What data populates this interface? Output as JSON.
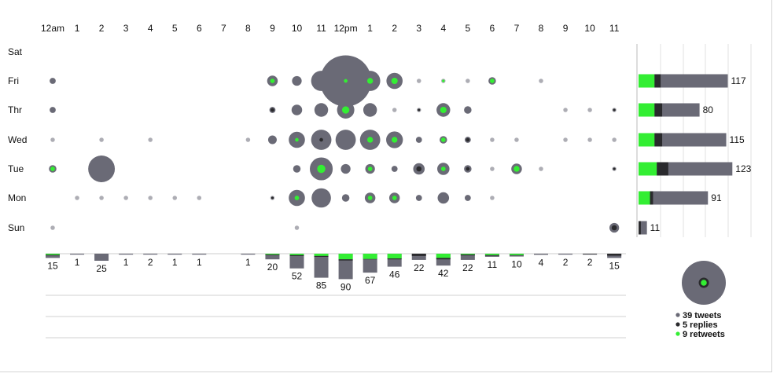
{
  "colors": {
    "tweets": "#6a6a76",
    "replies": "#2a2a2d",
    "retweets": "#33ee33"
  },
  "chart_data": {
    "type": "scatter",
    "hours": [
      "12am",
      "1",
      "2",
      "3",
      "4",
      "5",
      "6",
      "7",
      "8",
      "9",
      "10",
      "11",
      "12pm",
      "1",
      "2",
      "3",
      "4",
      "5",
      "6",
      "7",
      "8",
      "9",
      "10",
      "11"
    ],
    "days": [
      "Sat",
      "Fri",
      "Thr",
      "Wed",
      "Tue",
      "Mon",
      "Sun"
    ],
    "bubbles": [
      {
        "day": "Fri",
        "hour": 0,
        "size": 2,
        "inner": 0,
        "innerType": "none"
      },
      {
        "day": "Fri",
        "hour": 9,
        "size": 6,
        "inner": 3,
        "innerType": "retweet"
      },
      {
        "day": "Fri",
        "hour": 10,
        "size": 5,
        "inner": 0,
        "innerType": "none"
      },
      {
        "day": "Fri",
        "hour": 11,
        "size": 22,
        "inner": 0,
        "innerType": "none"
      },
      {
        "day": "Fri",
        "hour": 12,
        "size": 140,
        "inner": 2,
        "innerType": "retweet"
      },
      {
        "day": "Fri",
        "hour": 13,
        "size": 22,
        "inner": 5,
        "innerType": "retweet"
      },
      {
        "day": "Fri",
        "hour": 14,
        "size": 14,
        "inner": 6,
        "innerType": "retweet"
      },
      {
        "day": "Fri",
        "hour": 15,
        "size": 1,
        "inner": 0,
        "innerType": "none"
      },
      {
        "day": "Fri",
        "hour": 16,
        "size": 1,
        "inner": 1,
        "innerType": "retweet"
      },
      {
        "day": "Fri",
        "hour": 17,
        "size": 1,
        "inner": 0,
        "innerType": "none"
      },
      {
        "day": "Fri",
        "hour": 18,
        "size": 3,
        "inner": 3,
        "innerType": "retweet"
      },
      {
        "day": "Fri",
        "hour": 20,
        "size": 1,
        "inner": 0,
        "innerType": "reply"
      },
      {
        "day": "Thr",
        "hour": 0,
        "size": 2,
        "inner": 0,
        "innerType": "none"
      },
      {
        "day": "Thr",
        "hour": 9,
        "size": 2,
        "inner": 2,
        "innerType": "reply"
      },
      {
        "day": "Thr",
        "hour": 10,
        "size": 6,
        "inner": 0,
        "innerType": "none"
      },
      {
        "day": "Thr",
        "hour": 11,
        "size": 10,
        "inner": 0,
        "innerType": "none"
      },
      {
        "day": "Thr",
        "hour": 12,
        "size": 16,
        "inner": 8,
        "innerType": "retweet"
      },
      {
        "day": "Thr",
        "hour": 13,
        "size": 10,
        "inner": 0,
        "innerType": "none"
      },
      {
        "day": "Thr",
        "hour": 14,
        "size": 1,
        "inner": 0,
        "innerType": "none"
      },
      {
        "day": "Thr",
        "hour": 15,
        "size": 1,
        "inner": 1,
        "innerType": "reply"
      },
      {
        "day": "Thr",
        "hour": 16,
        "size": 10,
        "inner": 6,
        "innerType": "retweet"
      },
      {
        "day": "Thr",
        "hour": 17,
        "size": 3,
        "inner": 0,
        "innerType": "none"
      },
      {
        "day": "Thr",
        "hour": 21,
        "size": 1,
        "inner": 0,
        "innerType": "none"
      },
      {
        "day": "Thr",
        "hour": 22,
        "size": 1,
        "inner": 0,
        "innerType": "none"
      },
      {
        "day": "Thr",
        "hour": 23,
        "size": 1,
        "inner": 1,
        "innerType": "reply"
      },
      {
        "day": "Wed",
        "hour": 0,
        "size": 1,
        "inner": 0,
        "innerType": "none"
      },
      {
        "day": "Wed",
        "hour": 2,
        "size": 1,
        "inner": 0,
        "innerType": "none"
      },
      {
        "day": "Wed",
        "hour": 4,
        "size": 1,
        "inner": 0,
        "innerType": "none"
      },
      {
        "day": "Wed",
        "hour": 8,
        "size": 1,
        "inner": 0,
        "innerType": "none"
      },
      {
        "day": "Wed",
        "hour": 9,
        "size": 4,
        "inner": 0,
        "innerType": "none"
      },
      {
        "day": "Wed",
        "hour": 10,
        "size": 14,
        "inner": 2,
        "innerType": "retweet"
      },
      {
        "day": "Wed",
        "hour": 11,
        "size": 22,
        "inner": 2,
        "innerType": "reply"
      },
      {
        "day": "Wed",
        "hour": 12,
        "size": 22,
        "inner": 0,
        "innerType": "none"
      },
      {
        "day": "Wed",
        "hour": 13,
        "size": 22,
        "inner": 5,
        "innerType": "retweet"
      },
      {
        "day": "Wed",
        "hour": 14,
        "size": 15,
        "inner": 5,
        "innerType": "retweet"
      },
      {
        "day": "Wed",
        "hour": 15,
        "size": 2,
        "inner": 0,
        "innerType": "none"
      },
      {
        "day": "Wed",
        "hour": 16,
        "size": 3,
        "inner": 3,
        "innerType": "retweet"
      },
      {
        "day": "Wed",
        "hour": 17,
        "size": 2,
        "inner": 2,
        "innerType": "reply"
      },
      {
        "day": "Wed",
        "hour": 18,
        "size": 1,
        "inner": 0,
        "innerType": "none"
      },
      {
        "day": "Wed",
        "hour": 19,
        "size": 1,
        "inner": 0,
        "innerType": "none"
      },
      {
        "day": "Wed",
        "hour": 21,
        "size": 1,
        "inner": 0,
        "innerType": "none"
      },
      {
        "day": "Wed",
        "hour": 22,
        "size": 1,
        "inner": 0,
        "innerType": "none"
      },
      {
        "day": "Wed",
        "hour": 23,
        "size": 1,
        "inner": 0,
        "innerType": "none"
      },
      {
        "day": "Tue",
        "hour": 0,
        "size": 3,
        "inner": 3,
        "innerType": "retweet"
      },
      {
        "day": "Tue",
        "hour": 2,
        "size": 38,
        "inner": 0,
        "innerType": "none"
      },
      {
        "day": "Tue",
        "hour": 10,
        "size": 3,
        "inner": 0,
        "innerType": "none"
      },
      {
        "day": "Tue",
        "hour": 11,
        "size": 28,
        "inner": 10,
        "innerType": "retweet"
      },
      {
        "day": "Tue",
        "hour": 12,
        "size": 5,
        "inner": 0,
        "innerType": "none"
      },
      {
        "day": "Tue",
        "hour": 13,
        "size": 5,
        "inner": 3,
        "innerType": "retweet"
      },
      {
        "day": "Tue",
        "hour": 14,
        "size": 2,
        "inner": 0,
        "innerType": "none"
      },
      {
        "day": "Tue",
        "hour": 15,
        "size": 7,
        "inner": 4,
        "innerType": "reply"
      },
      {
        "day": "Tue",
        "hour": 16,
        "size": 8,
        "inner": 3,
        "innerType": "retweet"
      },
      {
        "day": "Tue",
        "hour": 17,
        "size": 3,
        "inner": 2,
        "innerType": "reply"
      },
      {
        "day": "Tue",
        "hour": 18,
        "size": 1,
        "inner": 0,
        "innerType": "none"
      },
      {
        "day": "Tue",
        "hour": 19,
        "size": 6,
        "inner": 5,
        "innerType": "retweet"
      },
      {
        "day": "Tue",
        "hour": 20,
        "size": 1,
        "inner": 0,
        "innerType": "none"
      },
      {
        "day": "Tue",
        "hour": 23,
        "size": 1,
        "inner": 1,
        "innerType": "reply"
      },
      {
        "day": "Mon",
        "hour": 1,
        "size": 1,
        "inner": 0,
        "innerType": "none"
      },
      {
        "day": "Mon",
        "hour": 2,
        "size": 1,
        "inner": 0,
        "innerType": "none"
      },
      {
        "day": "Mon",
        "hour": 3,
        "size": 1,
        "inner": 0,
        "innerType": "none"
      },
      {
        "day": "Mon",
        "hour": 4,
        "size": 1,
        "inner": 0,
        "innerType": "none"
      },
      {
        "day": "Mon",
        "hour": 5,
        "size": 1,
        "inner": 0,
        "innerType": "none"
      },
      {
        "day": "Mon",
        "hour": 6,
        "size": 1,
        "inner": 0,
        "innerType": "none"
      },
      {
        "day": "Mon",
        "hour": 9,
        "size": 1,
        "inner": 1,
        "innerType": "reply"
      },
      {
        "day": "Mon",
        "hour": 10,
        "size": 14,
        "inner": 3,
        "innerType": "retweet"
      },
      {
        "day": "Mon",
        "hour": 11,
        "size": 20,
        "inner": 0,
        "innerType": "none"
      },
      {
        "day": "Mon",
        "hour": 12,
        "size": 3,
        "inner": 0,
        "innerType": "none"
      },
      {
        "day": "Mon",
        "hour": 13,
        "size": 6,
        "inner": 3,
        "innerType": "retweet"
      },
      {
        "day": "Mon",
        "hour": 14,
        "size": 6,
        "inner": 3,
        "innerType": "retweet"
      },
      {
        "day": "Mon",
        "hour": 15,
        "size": 2,
        "inner": 0,
        "innerType": "none"
      },
      {
        "day": "Mon",
        "hour": 16,
        "size": 7,
        "inner": 0,
        "innerType": "none"
      },
      {
        "day": "Mon",
        "hour": 17,
        "size": 2,
        "inner": 0,
        "innerType": "none"
      },
      {
        "day": "Mon",
        "hour": 18,
        "size": 1,
        "inner": 0,
        "innerType": "none"
      },
      {
        "day": "Sun",
        "hour": 0,
        "size": 1,
        "inner": 0,
        "innerType": "none"
      },
      {
        "day": "Sun",
        "hour": 10,
        "size": 1,
        "inner": 0,
        "innerType": "none"
      },
      {
        "day": "Sun",
        "hour": 23,
        "size": 5,
        "inner": 4,
        "innerType": "reply"
      }
    ],
    "hour_totals": {
      "values": [
        15,
        1,
        25,
        1,
        2,
        1,
        1,
        null,
        1,
        20,
        52,
        85,
        90,
        67,
        46,
        22,
        42,
        22,
        11,
        10,
        4,
        2,
        2,
        15
      ],
      "retweets": [
        4,
        0,
        0,
        0,
        0,
        0,
        0,
        0,
        0,
        3,
        5,
        8,
        20,
        19,
        17,
        0,
        15,
        3,
        5,
        5,
        0,
        0,
        0,
        0
      ],
      "replies": [
        2,
        0,
        0,
        0,
        0,
        0,
        0,
        0,
        0,
        2,
        3,
        3,
        4,
        1,
        3,
        8,
        5,
        3,
        2,
        1,
        0,
        0,
        2,
        7
      ]
    },
    "day_totals": [
      {
        "day": "Sat",
        "total": null,
        "retweets": 0,
        "replies": 0
      },
      {
        "day": "Fri",
        "total": 117,
        "retweets": 21,
        "replies": 8
      },
      {
        "day": "Thr",
        "total": 80,
        "retweets": 21,
        "replies": 10
      },
      {
        "day": "Wed",
        "total": 115,
        "retweets": 21,
        "replies": 10
      },
      {
        "day": "Tue",
        "total": 123,
        "retweets": 24,
        "replies": 15
      },
      {
        "day": "Mon",
        "total": 91,
        "retweets": 15,
        "replies": 4
      },
      {
        "day": "Sun",
        "total": 11,
        "retweets": 0,
        "replies": 3
      }
    ],
    "legend": {
      "items": [
        {
          "label": "39 tweets",
          "type": "tweets"
        },
        {
          "label": "5 replies",
          "type": "replies"
        },
        {
          "label": "9 retweets",
          "type": "retweets"
        }
      ]
    }
  }
}
